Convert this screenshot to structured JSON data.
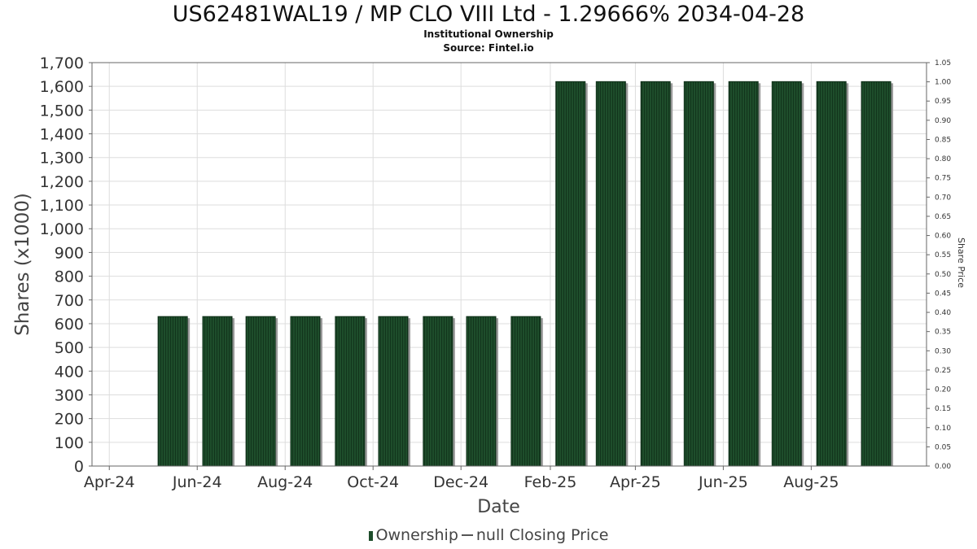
{
  "title": "US62481WAL19 / MP CLO VIII Ltd - 1.29666% 2034-04-28",
  "subtitle1": "Institutional Ownership",
  "subtitle2": "Source: Fintel.io",
  "legend": {
    "ownership": "Ownership",
    "price": "null Closing Price"
  },
  "colors": {
    "bar": "#1e4d2b",
    "bar_shadow": "#9a9a9a",
    "grid": "#dddddd",
    "axis": "#666666"
  },
  "chart_data": {
    "type": "bar",
    "xlabel": "Date",
    "ylabel": "Shares (x1000)",
    "y2label": "Share Price",
    "ylim": [
      0,
      1700
    ],
    "y2lim": [
      0,
      1.05
    ],
    "yticks": [
      0,
      100,
      200,
      300,
      400,
      500,
      600,
      700,
      800,
      900,
      1000,
      1100,
      1200,
      1300,
      1400,
      1500,
      1600,
      1700
    ],
    "ytick_labels": [
      "0",
      "100",
      "200",
      "300",
      "400",
      "500",
      "600",
      "700",
      "800",
      "900",
      "1,000",
      "1,100",
      "1,200",
      "1,300",
      "1,400",
      "1,500",
      "1,600",
      "1,700"
    ],
    "y2ticks": [
      "0.00",
      "0.05",
      "0.10",
      "0.15",
      "0.20",
      "0.25",
      "0.30",
      "0.35",
      "0.40",
      "0.45",
      "0.50",
      "0.55",
      "0.60",
      "0.65",
      "0.70",
      "0.75",
      "0.80",
      "0.85",
      "0.90",
      "0.95",
      "1.00",
      "1.05"
    ],
    "xlim": [
      "2024-03-20",
      "2025-10-20"
    ],
    "xticks": [
      {
        "date": "2024-04-01",
        "label": "Apr-24"
      },
      {
        "date": "2024-06-01",
        "label": "Jun-24"
      },
      {
        "date": "2024-08-01",
        "label": "Aug-24"
      },
      {
        "date": "2024-10-01",
        "label": "Oct-24"
      },
      {
        "date": "2024-12-01",
        "label": "Dec-24"
      },
      {
        "date": "2025-02-01",
        "label": "Feb-25"
      },
      {
        "date": "2025-04-01",
        "label": "Apr-25"
      },
      {
        "date": "2025-06-01",
        "label": "Jun-25"
      },
      {
        "date": "2025-08-01",
        "label": "Aug-25"
      }
    ],
    "series": [
      {
        "name": "Ownership",
        "points": [
          {
            "x": "2024-05-15",
            "y": 630
          },
          {
            "x": "2024-06-15",
            "y": 630
          },
          {
            "x": "2024-07-15",
            "y": 630
          },
          {
            "x": "2024-08-15",
            "y": 630
          },
          {
            "x": "2024-09-15",
            "y": 630
          },
          {
            "x": "2024-10-15",
            "y": 630
          },
          {
            "x": "2024-11-15",
            "y": 630
          },
          {
            "x": "2024-12-15",
            "y": 630
          },
          {
            "x": "2025-01-15",
            "y": 630
          },
          {
            "x": "2025-02-15",
            "y": 1620
          },
          {
            "x": "2025-03-15",
            "y": 1620
          },
          {
            "x": "2025-04-15",
            "y": 1620
          },
          {
            "x": "2025-05-15",
            "y": 1620
          },
          {
            "x": "2025-06-15",
            "y": 1620
          },
          {
            "x": "2025-07-15",
            "y": 1620
          },
          {
            "x": "2025-08-15",
            "y": 1620
          },
          {
            "x": "2025-09-15",
            "y": 1620
          }
        ]
      }
    ],
    "grid": true
  }
}
